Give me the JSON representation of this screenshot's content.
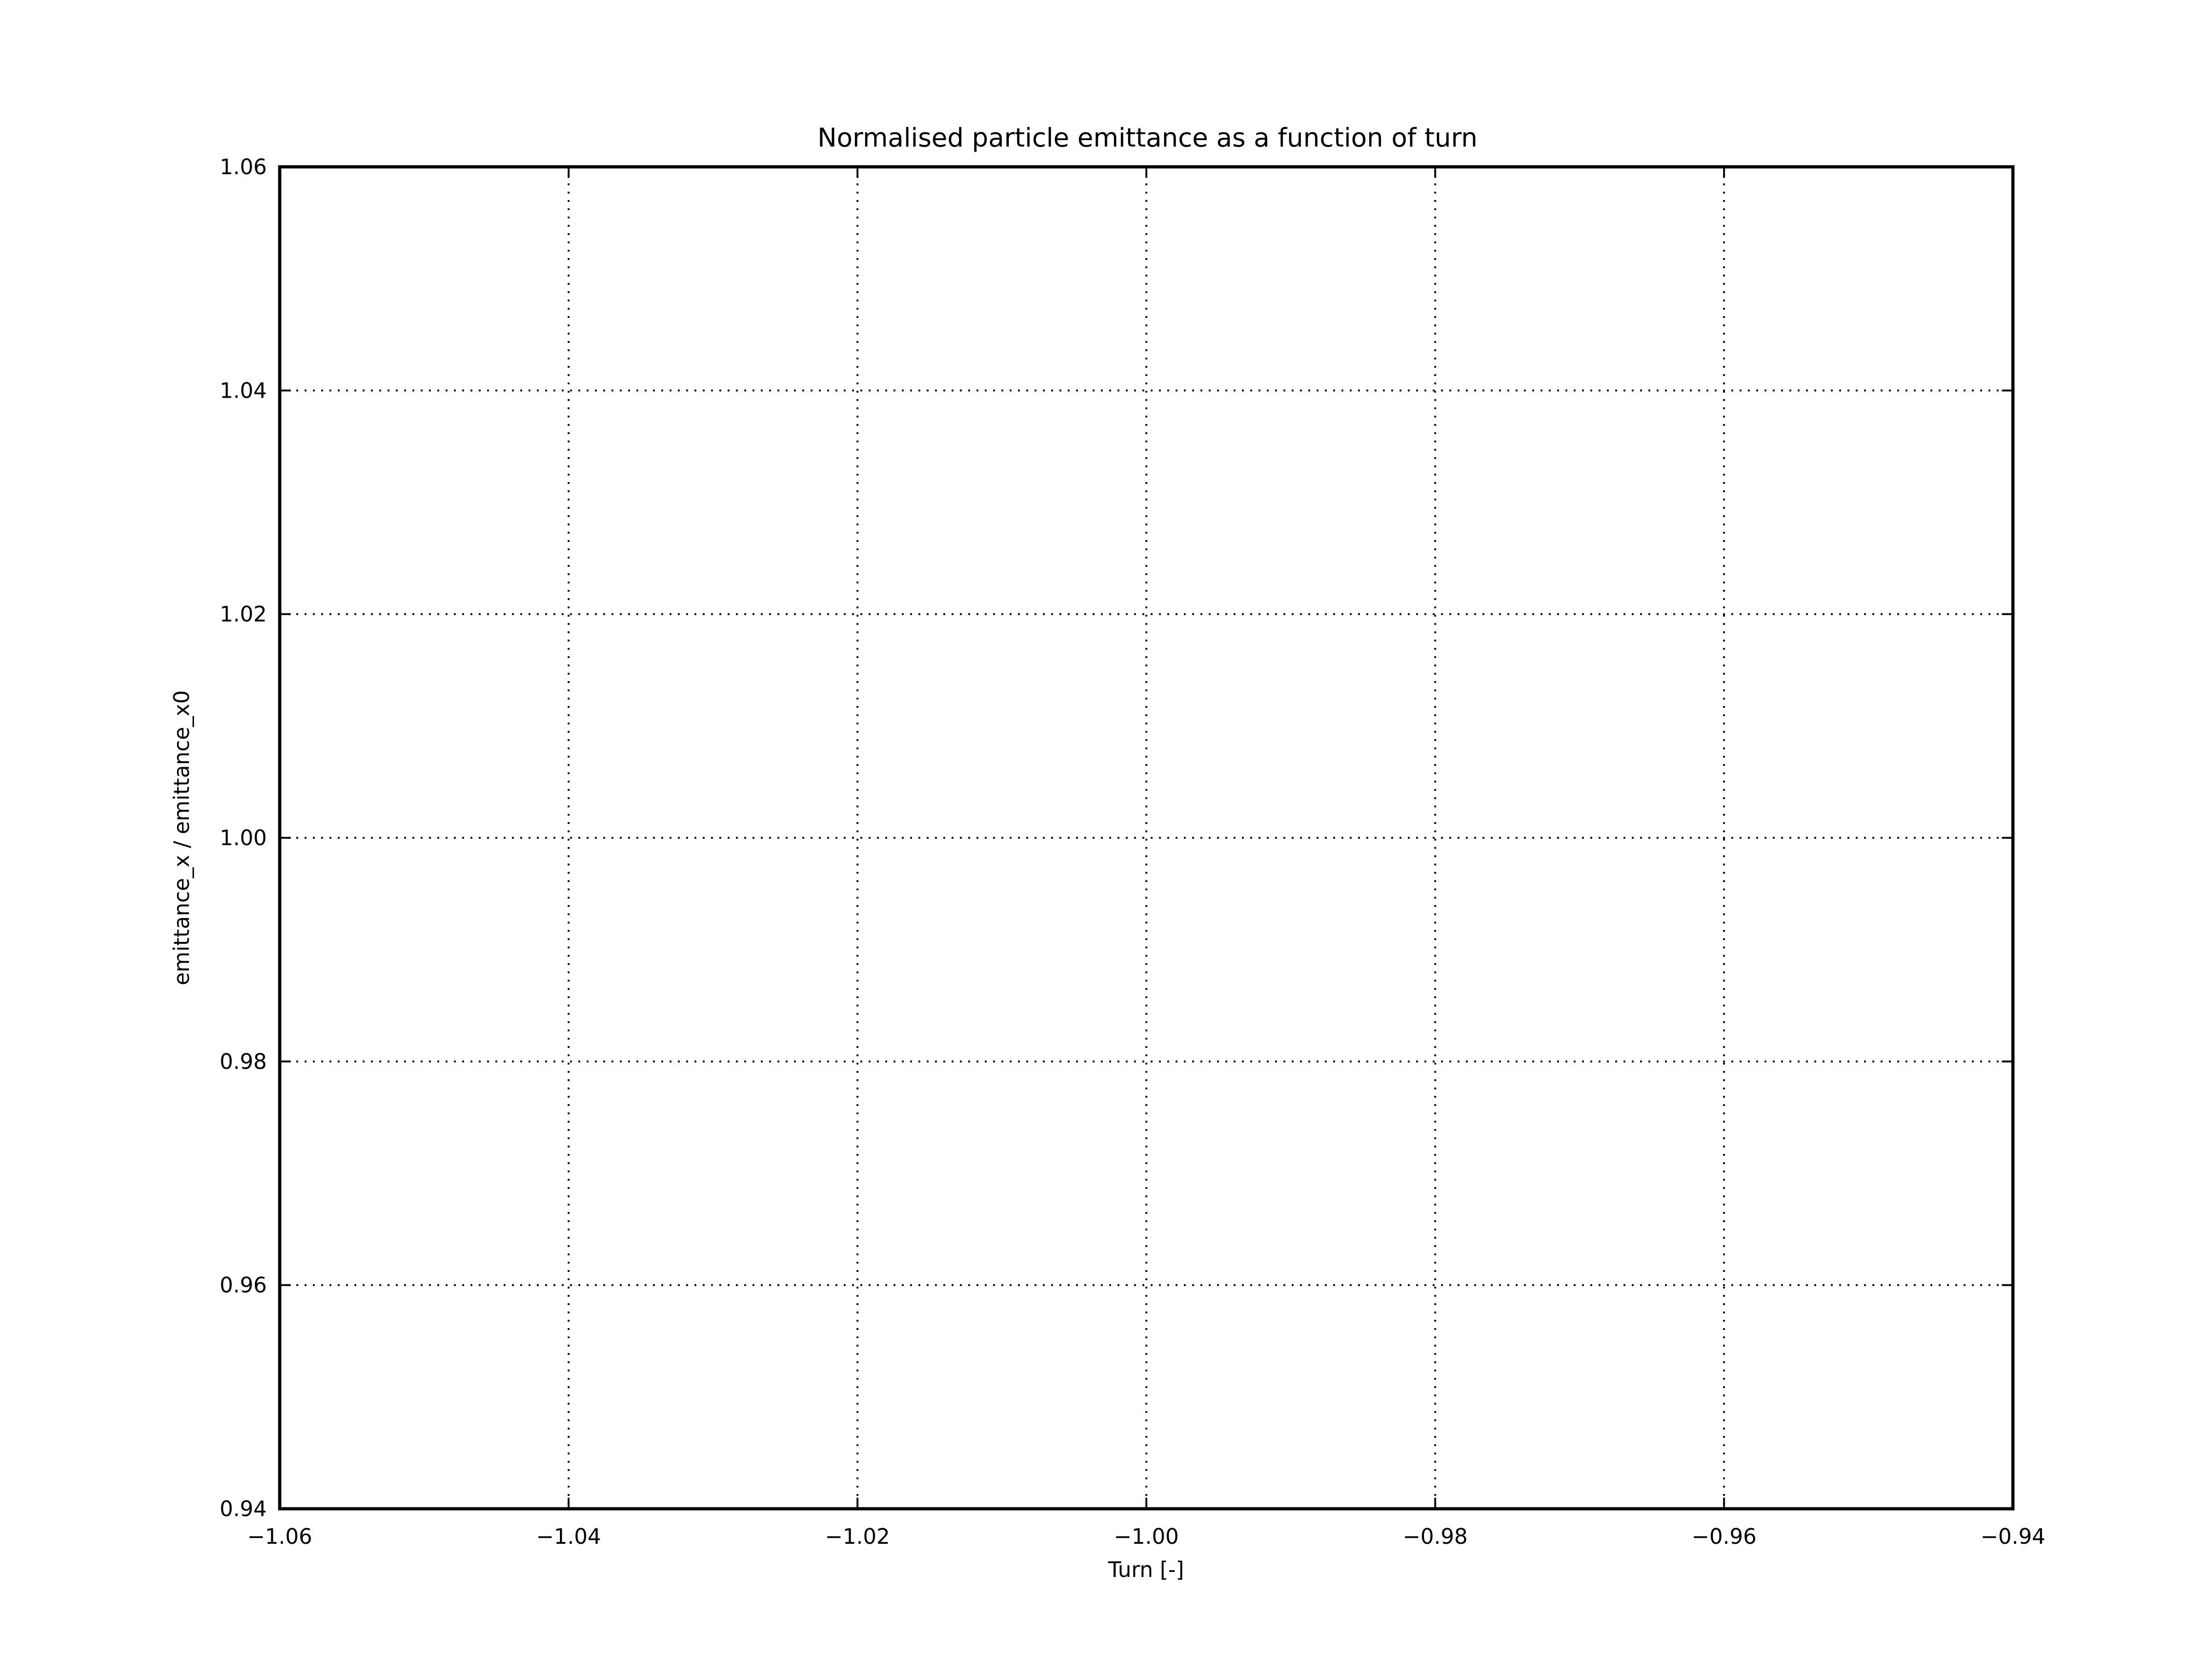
{
  "chart_data": {
    "type": "line",
    "title": "Normalised particle emittance as a function of turn",
    "xlabel": "Turn [-]",
    "ylabel": "emittance_x / emittance_x0",
    "xlim": [
      -1.06,
      -0.94
    ],
    "ylim": [
      0.94,
      1.06
    ],
    "xticks": [
      -1.06,
      -1.04,
      -1.02,
      -1.0,
      -0.98,
      -0.96,
      -0.94
    ],
    "xtick_labels": [
      "−1.06",
      "−1.04",
      "−1.02",
      "−1.00",
      "−0.98",
      "−0.96",
      "−0.94"
    ],
    "yticks": [
      0.94,
      0.96,
      0.98,
      1.0,
      1.02,
      1.04,
      1.06
    ],
    "ytick_labels": [
      "0.94",
      "0.96",
      "0.98",
      "1.00",
      "1.02",
      "1.04",
      "1.06"
    ],
    "grid": true,
    "series": []
  }
}
